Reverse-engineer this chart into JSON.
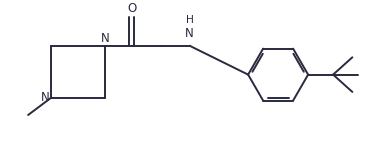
{
  "bg_color": "#ffffff",
  "line_color": "#2a2a3e",
  "line_width": 1.4,
  "font_size": 8.5,
  "figsize": [
    3.87,
    1.65
  ],
  "dpi": 100,
  "xlim": [
    0,
    10
  ],
  "ylim": [
    0,
    4.2
  ]
}
